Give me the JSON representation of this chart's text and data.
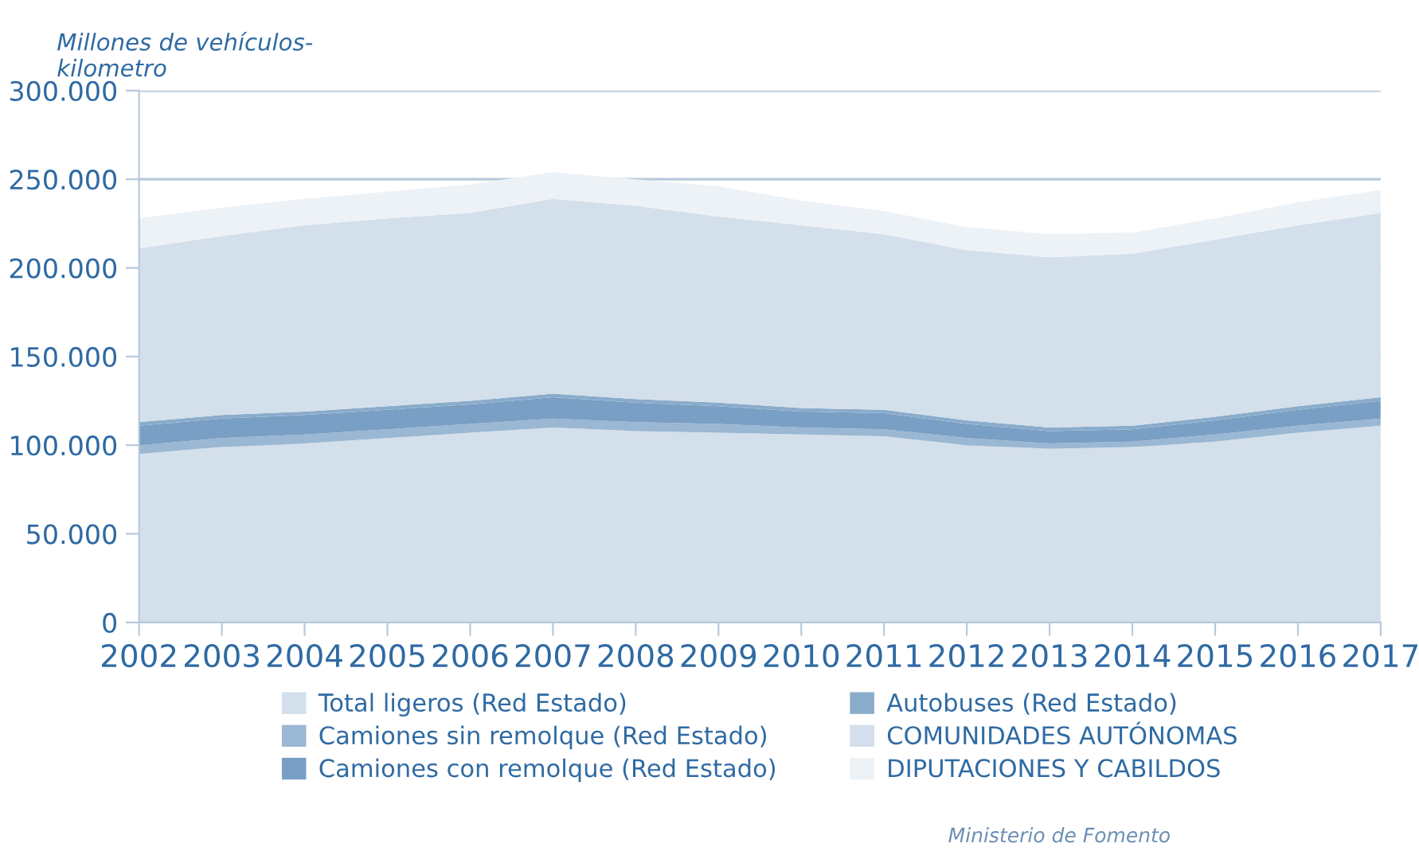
{
  "chart_data": {
    "type": "area",
    "stacked": true,
    "ylabel": "Millones de vehículos-\nkilometro",
    "categories": [
      "2002",
      "2003",
      "2004",
      "2005",
      "2006",
      "2007",
      "2008",
      "2009",
      "2010",
      "2011",
      "2012",
      "2013",
      "2014",
      "2015",
      "2016",
      "2017"
    ],
    "series": [
      {
        "name": "Total ligeros (Red Estado)",
        "color": "#d3dfea",
        "values": [
          95000,
          99000,
          101000,
          104000,
          107000,
          110000,
          108000,
          107000,
          106000,
          105000,
          100000,
          98000,
          99000,
          102000,
          107000,
          111000
        ]
      },
      {
        "name": "Camiones sin remolque (Red Estado)",
        "color": "#9ab7d3",
        "values": [
          5000,
          5000,
          5000,
          5000,
          5000,
          5000,
          5000,
          5000,
          4000,
          4000,
          4000,
          3000,
          3000,
          4000,
          4000,
          4000
        ]
      },
      {
        "name": "Camiones con remolque (Red Estado)",
        "color": "#7a9fc4",
        "values": [
          11000,
          11000,
          11000,
          11000,
          11000,
          12000,
          11000,
          10000,
          9000,
          9000,
          8000,
          7000,
          7000,
          8000,
          9000,
          10000
        ]
      },
      {
        "name": "Autobuses (Red Estado)",
        "color": "#8aaccb",
        "values": [
          2000,
          2000,
          2000,
          2000,
          2000,
          2000,
          2000,
          2000,
          2000,
          2000,
          2000,
          2000,
          2000,
          2000,
          2000,
          2000
        ]
      },
      {
        "name": "COMUNIDADES AUTÓNOMAS",
        "color": "#d3dfea",
        "values": [
          98000,
          101000,
          105000,
          106000,
          106000,
          110000,
          109000,
          105000,
          103000,
          99000,
          96000,
          96000,
          97000,
          100000,
          102000,
          104000
        ]
      },
      {
        "name": "DIPUTACIONES Y CABILDOS",
        "color": "#edf2f7",
        "values": [
          17000,
          16000,
          15000,
          15000,
          16000,
          15000,
          15000,
          17000,
          14000,
          13000,
          13000,
          13000,
          12000,
          12000,
          13000,
          13000
        ]
      }
    ],
    "ylim": [
      0,
      300000
    ],
    "yticks": [
      0,
      {
        "value": 50000,
        "label": "50.000"
      },
      {
        "value": 100000,
        "label": "100.000"
      },
      {
        "value": 150000,
        "label": "150.000"
      },
      {
        "value": 200000,
        "label": "200.000"
      },
      {
        "value": 250000,
        "label": "250.000"
      },
      {
        "value": 300000,
        "label": "300.000"
      }
    ],
    "grid": "y",
    "legend": "bottom",
    "annotations": [
      "Ministerio de Fomento"
    ]
  }
}
